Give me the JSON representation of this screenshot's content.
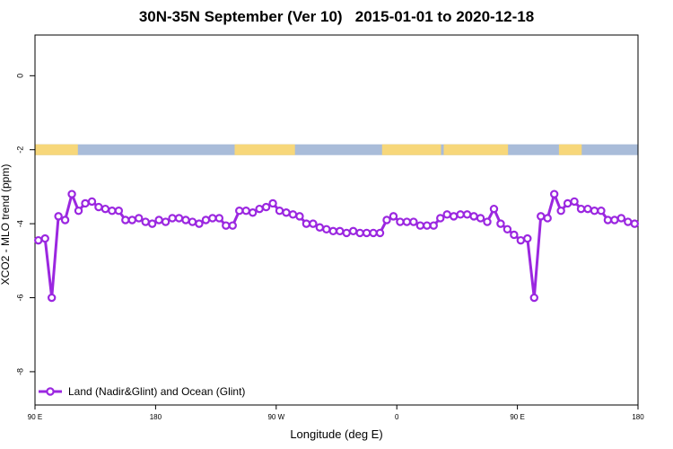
{
  "chart_data": {
    "type": "line",
    "title": "30N-35N September (Ver 10)   2015-01-01 to 2020-12-18",
    "xlabel": "Longitude (deg E)",
    "ylabel": "XCO2 - MLO trend (ppm)",
    "x_ticks": [
      {
        "value": 90,
        "label": "90 E"
      },
      {
        "value": 180,
        "label": "180"
      },
      {
        "value": 270,
        "label": "90 W"
      },
      {
        "value": 360,
        "label": "0"
      },
      {
        "value": 450,
        "label": "90 E"
      },
      {
        "value": 540,
        "label": "180"
      }
    ],
    "xlim": [
      90,
      540
    ],
    "y_ticks": [
      0,
      -2,
      -4,
      -6,
      -8
    ],
    "ylim": [
      -8.9,
      1.1
    ],
    "grid": false,
    "legend_position": "bottom-left",
    "land_mask": {
      "y": -2,
      "ocean_color": "#a9bcd9",
      "land_color": "#f7d77a",
      "land_spans": [
        [
          90,
          122
        ],
        [
          239,
          284
        ],
        [
          349,
          393
        ],
        [
          395,
          443
        ],
        [
          481,
          498
        ]
      ]
    },
    "series": [
      {
        "name": "Land (Nadir&Glint) and Ocean (Glint)",
        "color": "#9b27e0",
        "x": [
          92.5,
          97.5,
          102.5,
          107.5,
          112.5,
          117.5,
          122.5,
          127.5,
          132.5,
          137.5,
          142.5,
          147.5,
          152.5,
          157.5,
          162.5,
          167.5,
          172.5,
          177.5,
          182.5,
          187.5,
          192.5,
          197.5,
          202.5,
          207.5,
          212.5,
          217.5,
          222.5,
          227.5,
          232.5,
          237.5,
          242.5,
          247.5,
          252.5,
          257.5,
          262.5,
          267.5,
          272.5,
          277.5,
          282.5,
          287.5,
          292.5,
          297.5,
          302.5,
          307.5,
          312.5,
          317.5,
          322.5,
          327.5,
          332.5,
          337.5,
          342.5,
          347.5,
          352.5,
          357.5,
          362.5,
          367.5,
          372.5,
          377.5,
          382.5,
          387.5,
          392.5,
          397.5,
          402.5,
          407.5,
          412.5,
          417.5,
          422.5,
          427.5,
          432.5,
          437.5,
          442.5,
          447.5,
          452.5,
          457.5,
          462.5,
          467.5,
          472.5,
          477.5,
          482.5,
          487.5,
          492.5,
          497.5,
          502.5,
          507.5,
          512.5,
          517.5,
          522.5,
          527.5,
          532.5,
          537.5
        ],
        "y": [
          -4.45,
          -4.4,
          -6.0,
          -3.8,
          -3.9,
          -3.2,
          -3.65,
          -3.45,
          -3.4,
          -3.55,
          -3.6,
          -3.65,
          -3.65,
          -3.9,
          -3.9,
          -3.85,
          -3.95,
          -4.0,
          -3.9,
          -3.95,
          -3.85,
          -3.85,
          -3.9,
          -3.95,
          -4.0,
          -3.9,
          -3.85,
          -3.85,
          -4.05,
          -4.05,
          -3.65,
          -3.65,
          -3.7,
          -3.6,
          -3.55,
          -3.45,
          -3.65,
          -3.7,
          -3.75,
          -3.8,
          -4.0,
          -4.0,
          -4.1,
          -4.15,
          -4.2,
          -4.2,
          -4.25,
          -4.2,
          -4.25,
          -4.25,
          -4.25,
          -4.25,
          -3.9,
          -3.8,
          -3.95,
          -3.95,
          -3.95,
          -4.05,
          -4.05,
          -4.05,
          -3.85,
          -3.75,
          -3.8,
          -3.75,
          -3.75,
          -3.8,
          -3.85,
          -3.95,
          -3.6,
          -4.0,
          -4.15,
          -4.3,
          -4.45,
          -4.4,
          -6.0,
          -3.8,
          -3.85,
          -3.2,
          -3.65,
          -3.45,
          -3.4,
          -3.6,
          -3.6,
          -3.65,
          -3.65,
          -3.9,
          -3.9,
          -3.85,
          -3.95,
          -4.0
        ]
      }
    ]
  }
}
